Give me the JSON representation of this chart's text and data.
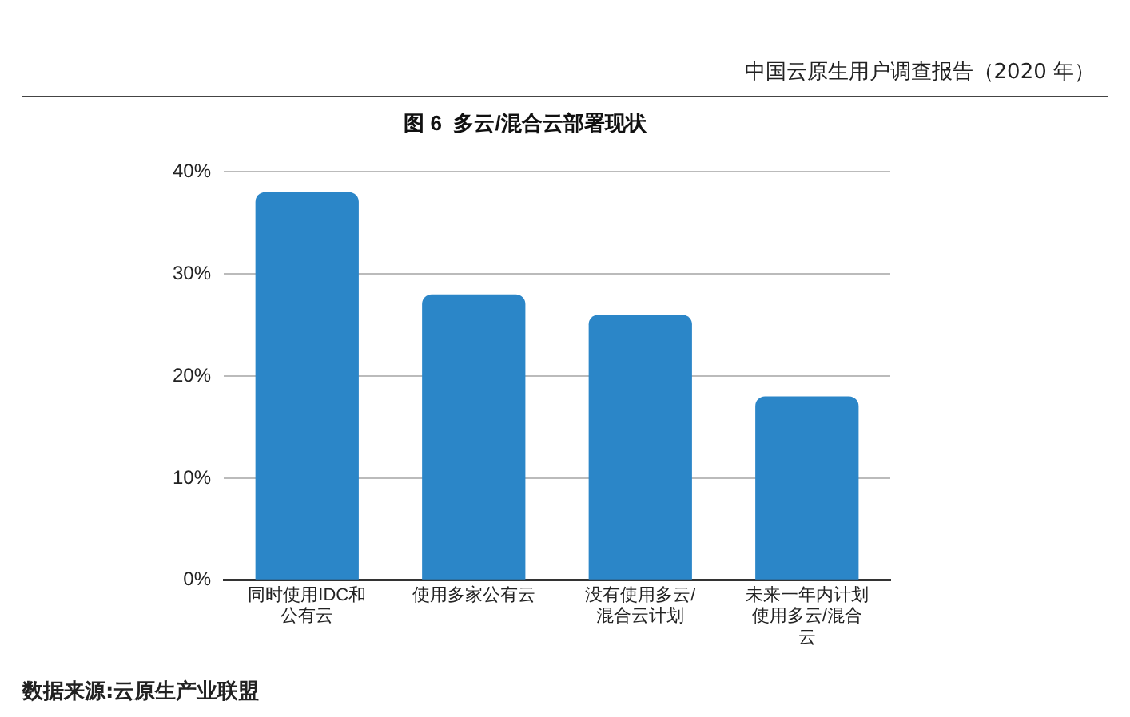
{
  "chart_data": {
    "type": "bar",
    "title": "图 6  多云/混合云部署现状",
    "categories": [
      "同时使用IDC和公有云",
      "使用多家公有云",
      "没有使用多云/混合云计划",
      "未来一年内计划使用多云/混合云"
    ],
    "values": [
      38,
      28,
      26,
      18
    ],
    "color": "#2b86c8",
    "ylim": [
      0,
      40
    ],
    "yticks": [
      {
        "value": 0,
        "label": "0%"
      },
      {
        "value": 10,
        "label": "10%"
      },
      {
        "value": 20,
        "label": "20%"
      },
      {
        "value": 30,
        "label": "30%"
      },
      {
        "value": 40,
        "label": "40%"
      }
    ],
    "grid": "y",
    "legend": false,
    "annotations": [
      "中国云原生用户调查报告（2020 年）",
      "数据来源:云原生产业联盟"
    ]
  }
}
